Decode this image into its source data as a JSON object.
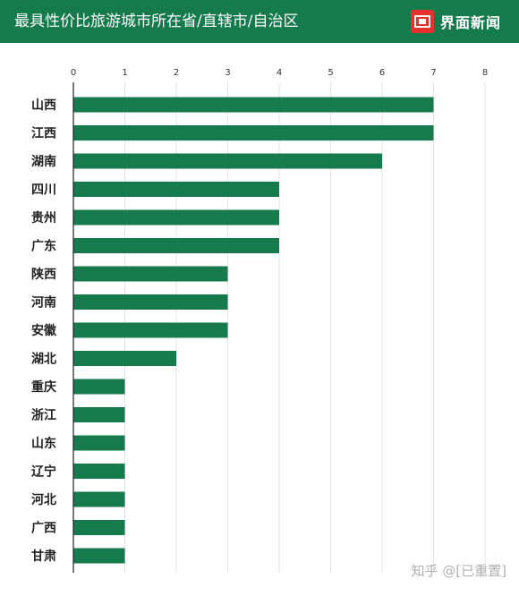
{
  "header": {
    "title": "最具性价比旅游城市所在省/直辖市/自治区",
    "brand_name": "界面新闻"
  },
  "watermark": "知乎 @[已重置]",
  "colors": {
    "bar": "#157a4c",
    "header_bg": "#157a4c",
    "brand_logo": "#e8312f",
    "grid": "#e3e3e3"
  },
  "chart_data": {
    "type": "bar",
    "orientation": "horizontal",
    "title": "最具性价比旅游城市所在省/直辖市/自治区",
    "xlabel": "",
    "ylabel": "",
    "xlim": [
      0,
      8
    ],
    "xticks": [
      0,
      1,
      2,
      3,
      4,
      5,
      6,
      7,
      8
    ],
    "grid": true,
    "categories": [
      "山西",
      "江西",
      "湖南",
      "四川",
      "贵州",
      "广东",
      "陕西",
      "河南",
      "安徽",
      "湖北",
      "重庆",
      "浙江",
      "山东",
      "辽宁",
      "河北",
      "广西",
      "甘肃"
    ],
    "values": [
      7,
      7,
      6,
      4,
      4,
      4,
      3,
      3,
      3,
      2,
      1,
      1,
      1,
      1,
      1,
      1,
      1
    ]
  }
}
